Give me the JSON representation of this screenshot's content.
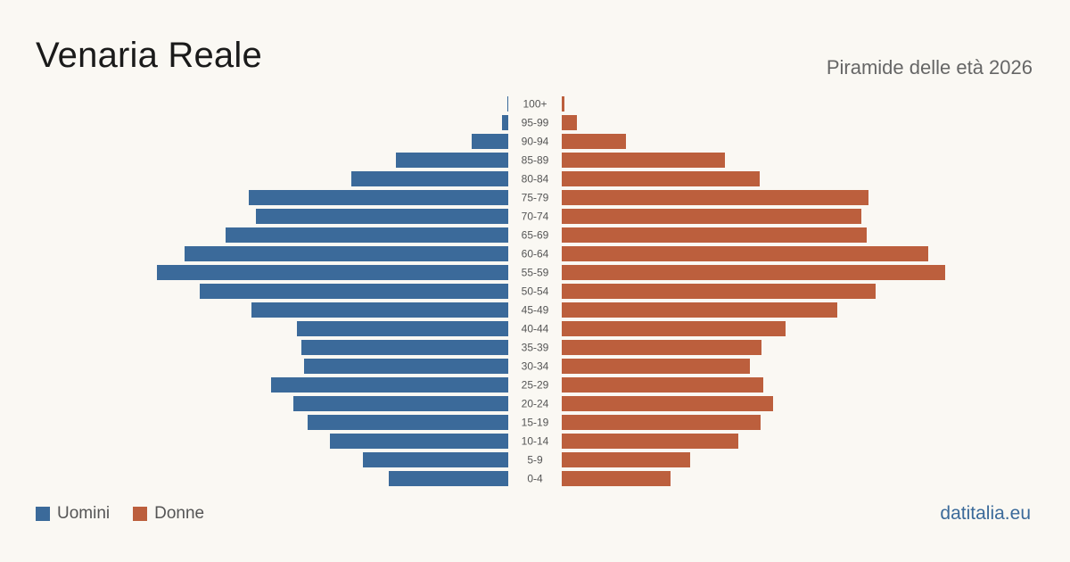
{
  "title": "Venaria Reale",
  "subtitle": "Piramide delle età 2026",
  "brand": "datitalia.eu",
  "colors": {
    "men": "#3b6a9a",
    "women": "#bc5f3d"
  },
  "legend": [
    {
      "label": "Uomini",
      "color": "#3b6a9a"
    },
    {
      "label": "Donne",
      "color": "#bc5f3d"
    }
  ],
  "chart_data": {
    "type": "bar",
    "orientation": "horizontal-pyramid",
    "categories": [
      "100+",
      "95-99",
      "90-94",
      "85-89",
      "80-84",
      "75-79",
      "70-74",
      "65-69",
      "60-64",
      "55-59",
      "50-54",
      "45-49",
      "40-44",
      "35-39",
      "30-34",
      "25-29",
      "20-24",
      "15-19",
      "10-14",
      "5-9",
      "0-4"
    ],
    "series": [
      {
        "name": "Uomini",
        "values": [
          1,
          7,
          41,
          126,
          176,
          291,
          283,
          317,
          363,
          394,
          346,
          288,
          237,
          232,
          229,
          266,
          241,
          225,
          200,
          163,
          134
        ]
      },
      {
        "name": "Donne",
        "values": [
          3,
          17,
          72,
          183,
          222,
          344,
          336,
          342,
          411,
          430,
          352,
          309,
          251,
          224,
          211,
          226,
          237,
          223,
          198,
          144,
          122
        ]
      }
    ],
    "legend": "bottom-left",
    "grid": false
  }
}
